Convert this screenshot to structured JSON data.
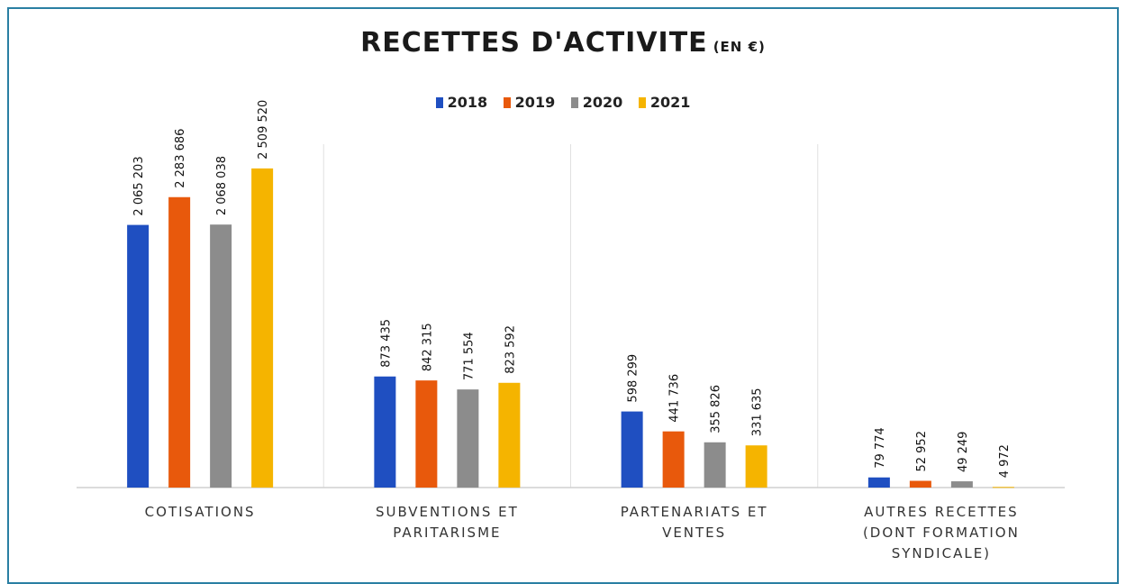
{
  "chart_data": {
    "type": "bar",
    "title": "RECETTES D'ACTIVITE",
    "title_unit": "(EN €)",
    "categories": [
      [
        "COTISATIONS"
      ],
      [
        "SUBVENTIONS ET",
        "PARITARISME"
      ],
      [
        "PARTENARIATS ET",
        "VENTES"
      ],
      [
        "AUTRES RECETTES",
        "(DONT FORMATION",
        "SYNDICALE)"
      ]
    ],
    "series": [
      {
        "name": "2018",
        "color": "#1f4fc1",
        "values": [
          2065203,
          873435,
          598299,
          79774
        ],
        "labels": [
          "2 065 203",
          "873 435",
          "598 299",
          "79 774"
        ]
      },
      {
        "name": "2019",
        "color": "#e8590c",
        "values": [
          2283686,
          842315,
          441736,
          52952
        ],
        "labels": [
          "2 283 686",
          "842 315",
          "441 736",
          "52 952"
        ]
      },
      {
        "name": "2020",
        "color": "#8c8c8c",
        "values": [
          2068038,
          771554,
          355826,
          49249
        ],
        "labels": [
          "2 068 038",
          "771 554",
          "355 826",
          "49 249"
        ]
      },
      {
        "name": "2021",
        "color": "#f5b400",
        "values": [
          2509520,
          823592,
          331635,
          4972
        ],
        "labels": [
          "2 509 520",
          "823 592",
          "331 635",
          "4 972"
        ]
      }
    ],
    "ylim": [
      0,
      2700000
    ],
    "legend_position": "top-center",
    "grid": false
  }
}
